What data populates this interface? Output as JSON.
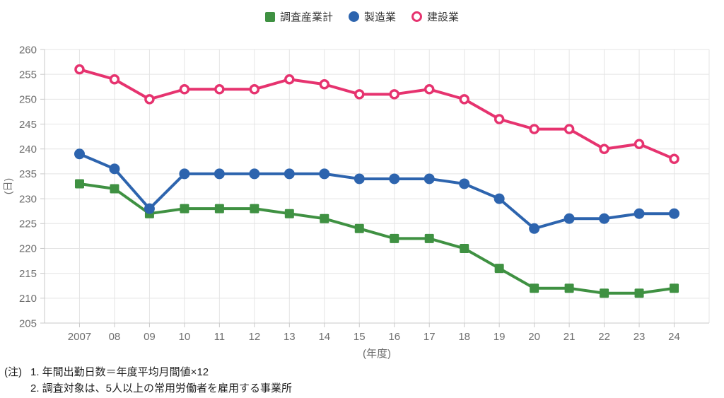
{
  "chart_data": {
    "type": "line",
    "title": "",
    "x_categories": [
      "2007",
      "08",
      "09",
      "10",
      "11",
      "12",
      "13",
      "14",
      "15",
      "16",
      "17",
      "18",
      "19",
      "20",
      "21",
      "22",
      "23",
      "24"
    ],
    "xlabel": "(年度)",
    "ylabel": "(日)",
    "ylim": [
      205,
      260
    ],
    "ytick_step": 5,
    "grid": true,
    "legend_position": "top-center",
    "series": [
      {
        "name": "調査産業計",
        "marker": "square",
        "color": "#3f9142",
        "values": [
          233,
          232,
          227,
          228,
          228,
          228,
          227,
          226,
          224,
          222,
          222,
          220,
          216,
          212,
          212,
          211,
          211,
          212
        ]
      },
      {
        "name": "製造業",
        "marker": "circle",
        "color": "#2d64ae",
        "values": [
          239,
          236,
          228,
          235,
          235,
          235,
          235,
          235,
          234,
          234,
          234,
          233,
          230,
          224,
          226,
          226,
          227,
          227
        ]
      },
      {
        "name": "建設業",
        "marker": "open-circle",
        "color": "#e6336f",
        "values": [
          256,
          254,
          250,
          252,
          252,
          252,
          254,
          253,
          251,
          251,
          252,
          250,
          246,
          244,
          244,
          240,
          241,
          238
        ]
      }
    ]
  },
  "notes": {
    "prefix": "(注)",
    "items": [
      "1. 年間出勤日数＝年度平均月間値×12",
      "2. 調査対象は、5人以上の常用労働者を雇用する事業所"
    ]
  },
  "colors": {
    "grid": "#e4e4e4",
    "axis": "#c9c9c9",
    "tick_text": "#6e6e6e",
    "note_text": "#1f1f1f"
  }
}
